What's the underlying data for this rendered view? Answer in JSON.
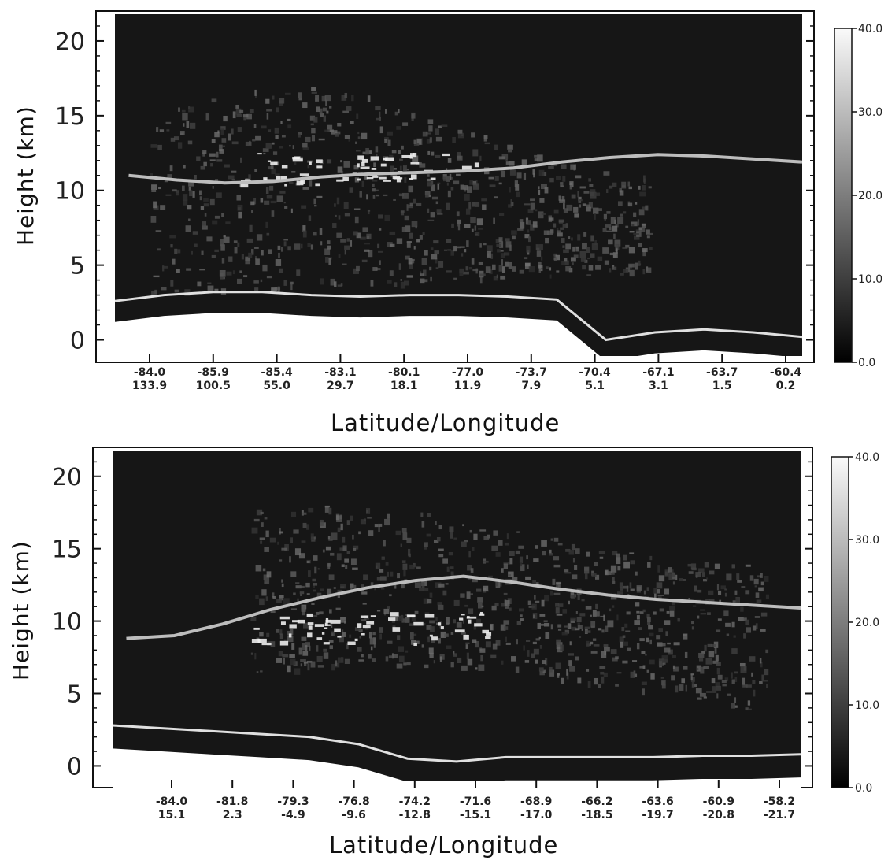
{
  "chart_data": [
    {
      "type": "heatmap",
      "title": "",
      "ylabel": "Height (km)",
      "xlabel": "Latitude/Longitude",
      "ylim": [
        -1.5,
        22
      ],
      "y_ticks": [
        "0",
        "5",
        "10",
        "15",
        "20"
      ],
      "x_ticks": [
        {
          "lat": "-84.0",
          "lon": "133.9"
        },
        {
          "lat": "-85.9",
          "lon": "100.5"
        },
        {
          "lat": "-85.4",
          "lon": "55.0"
        },
        {
          "lat": "-83.1",
          "lon": "29.7"
        },
        {
          "lat": "-80.1",
          "lon": "18.1"
        },
        {
          "lat": "-77.0",
          "lon": "11.9"
        },
        {
          "lat": "-73.7",
          "lon": "7.9"
        },
        {
          "lat": "-70.4",
          "lon": "5.1"
        },
        {
          "lat": "-67.1",
          "lon": "3.1"
        },
        {
          "lat": "-63.7",
          "lon": "1.5"
        },
        {
          "lat": "-60.4",
          "lon": "0.2"
        }
      ],
      "colorbar": {
        "range": [
          0,
          40
        ],
        "ticks": [
          "0.0",
          "10.0",
          "20.0",
          "30.0",
          "40.0"
        ]
      },
      "overlay_line_height_km": [
        11.0,
        10.7,
        10.5,
        10.6,
        10.9,
        11.1,
        11.2,
        11.3,
        11.5,
        11.9,
        12.2,
        12.4,
        12.3,
        12.1,
        11.9
      ],
      "surface_height_km": [
        2.6,
        3.0,
        3.2,
        3.2,
        3.0,
        2.9,
        3.0,
        3.0,
        2.9,
        2.7,
        0.0,
        0.5,
        0.7,
        0.5,
        0.2
      ]
    },
    {
      "type": "heatmap",
      "title": "",
      "ylabel": "Height (km)",
      "xlabel": "Latitude/Longitude",
      "ylim": [
        -1.5,
        22
      ],
      "y_ticks": [
        "0",
        "5",
        "10",
        "15",
        "20"
      ],
      "x_ticks": [
        {
          "lat": "-84.0",
          "lon": "15.1"
        },
        {
          "lat": "-81.8",
          "lon": "2.3"
        },
        {
          "lat": "-79.3",
          "lon": "-4.9"
        },
        {
          "lat": "-76.8",
          "lon": "-9.6"
        },
        {
          "lat": "-74.2",
          "lon": "-12.8"
        },
        {
          "lat": "-71.6",
          "lon": "-15.1"
        },
        {
          "lat": "-68.9",
          "lon": "-17.0"
        },
        {
          "lat": "-66.2",
          "lon": "-18.5"
        },
        {
          "lat": "-63.6",
          "lon": "-19.7"
        },
        {
          "lat": "-60.9",
          "lon": "-20.8"
        },
        {
          "lat": "-58.2",
          "lon": "-21.7"
        }
      ],
      "colorbar": {
        "range": [
          0,
          40
        ],
        "ticks": [
          "0.0",
          "10.0",
          "20.0",
          "30.0",
          "40.0"
        ]
      },
      "overlay_line_height_km": [
        8.8,
        9.0,
        9.8,
        10.8,
        11.6,
        12.3,
        12.8,
        13.1,
        12.7,
        12.2,
        11.8,
        11.5,
        11.3,
        11.1,
        10.9
      ],
      "surface_height_km": [
        2.8,
        2.6,
        2.4,
        2.2,
        2.0,
        1.5,
        0.5,
        0.3,
        0.6,
        0.6,
        0.6,
        0.6,
        0.7,
        0.7,
        0.8
      ]
    }
  ]
}
